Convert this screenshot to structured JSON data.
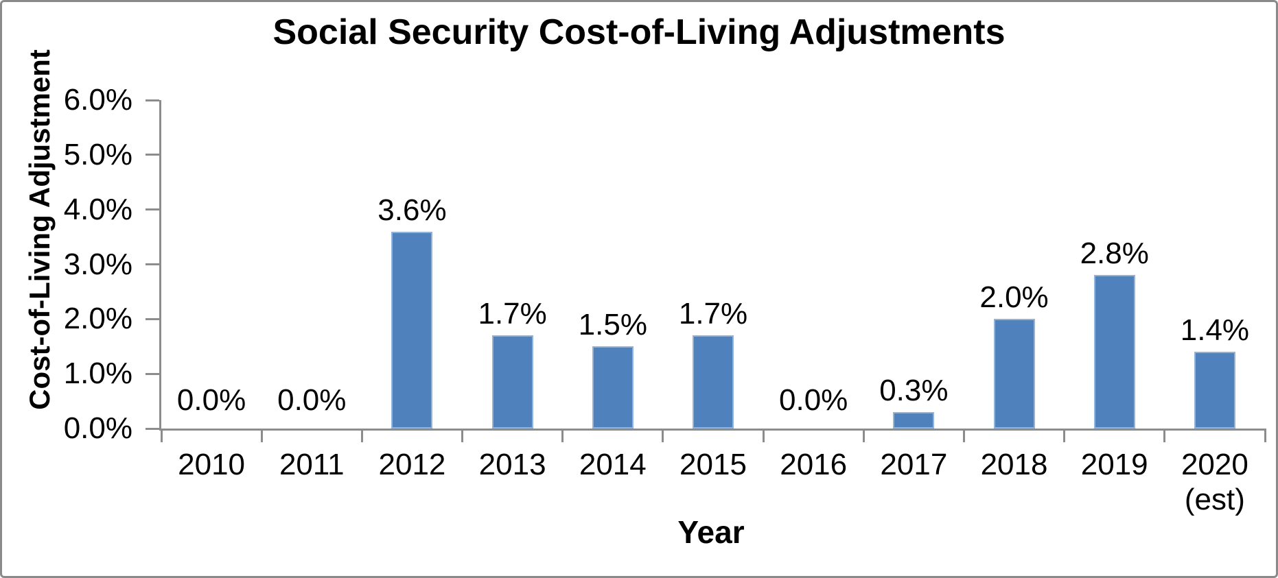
{
  "chart_data": {
    "type": "bar",
    "title": "Social Security Cost-of-Living Adjustments",
    "xlabel": "Year",
    "ylabel": "Cost-of-Living Adjustment",
    "categories": [
      {
        "label": "2010",
        "sublabel": ""
      },
      {
        "label": "2011",
        "sublabel": ""
      },
      {
        "label": "2012",
        "sublabel": ""
      },
      {
        "label": "2013",
        "sublabel": ""
      },
      {
        "label": "2014",
        "sublabel": ""
      },
      {
        "label": "2015",
        "sublabel": ""
      },
      {
        "label": "2016",
        "sublabel": ""
      },
      {
        "label": "2017",
        "sublabel": ""
      },
      {
        "label": "2018",
        "sublabel": ""
      },
      {
        "label": "2019",
        "sublabel": ""
      },
      {
        "label": "2020",
        "sublabel": "(est)"
      }
    ],
    "values": [
      0.0,
      0.0,
      3.6,
      1.7,
      1.5,
      1.7,
      0.0,
      0.3,
      2.0,
      2.8,
      1.4
    ],
    "data_labels": [
      "0.0%",
      "0.0%",
      "3.6%",
      "1.7%",
      "1.5%",
      "1.7%",
      "0.0%",
      "0.3%",
      "2.0%",
      "2.8%",
      "1.4%"
    ],
    "y_ticks": [
      "6.0%",
      "5.0%",
      "4.0%",
      "3.0%",
      "2.0%",
      "1.0%",
      "0.0%"
    ],
    "ylim": [
      0,
      6
    ],
    "y_tick_step": 1.0,
    "grid": false,
    "legend": "none",
    "colors": {
      "bar_fill": "#4f81bd",
      "bar_border": "#95b3d7",
      "axis": "#8c8c8c",
      "text": "#000000",
      "background": "#ffffff",
      "frame_border": "#8a8a8a"
    }
  }
}
